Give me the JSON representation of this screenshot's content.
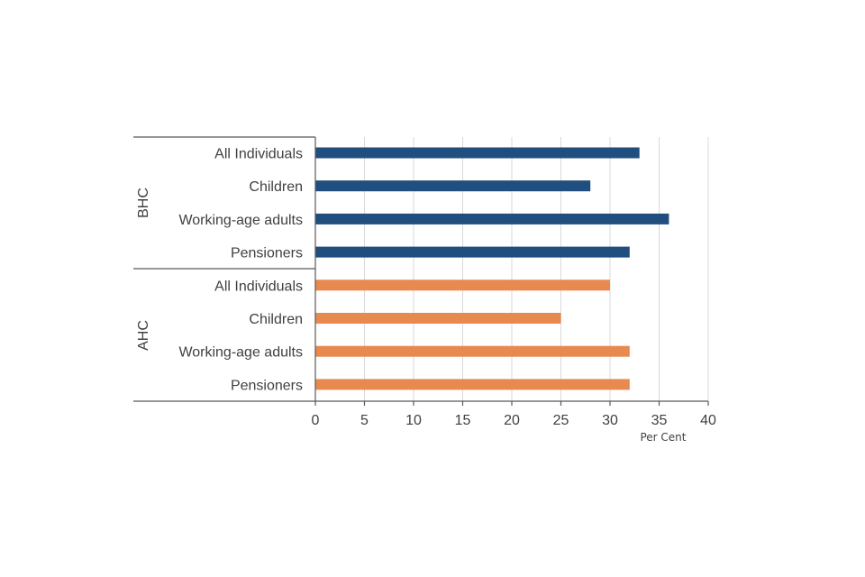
{
  "chart_data": {
    "type": "bar",
    "orientation": "horizontal",
    "groups": [
      {
        "name": "BHC",
        "color": "#1f4e7f",
        "categories": [
          "All Individuals",
          "Children",
          "Working-age adults",
          "Pensioners"
        ],
        "values": [
          33,
          28,
          36,
          32
        ]
      },
      {
        "name": "AHC",
        "color": "#e8894f",
        "categories": [
          "All Individuals",
          "Children",
          "Working-age adults",
          "Pensioners"
        ],
        "values": [
          30,
          25,
          32,
          32
        ]
      }
    ],
    "xlim": [
      0,
      40
    ],
    "xticks": [
      0,
      5,
      10,
      15,
      20,
      25,
      30,
      35,
      40
    ],
    "xlabel": "Per Cent",
    "title": "",
    "grid": true,
    "legend": "none"
  }
}
